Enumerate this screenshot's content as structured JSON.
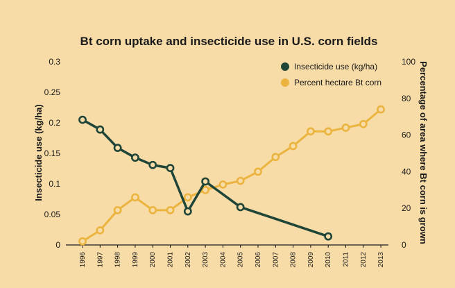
{
  "chart_data": {
    "type": "line",
    "title": "Bt corn uptake and insecticide use in U.S. corn fields",
    "x": [
      "1996",
      "1997",
      "1998",
      "1999",
      "2000",
      "2001",
      "2002",
      "2003",
      "2004",
      "2005",
      "2006",
      "2007",
      "2008",
      "2009",
      "2010",
      "2011",
      "2012",
      "2013"
    ],
    "ylabel_left": "Insecticide use (kg/ha)",
    "ylabel_right": "Percentage of area where Bt corn is grown",
    "ylim_left": [
      0,
      0.3
    ],
    "ylim_right": [
      0,
      100
    ],
    "yticks_left": [
      "0",
      "0.05",
      "0.1",
      "0.15",
      "0.2",
      "0.25",
      "0.3"
    ],
    "yticks_right": [
      "0",
      "20",
      "40",
      "60",
      "80",
      "100"
    ],
    "legend_position": "top-right",
    "grid": false,
    "series": [
      {
        "name": "Insecticide use (kg/ha)",
        "axis": "left",
        "color": "#1f4538",
        "points": [
          {
            "x": "1996",
            "y": 0.205
          },
          {
            "x": "1997",
            "y": 0.189
          },
          {
            "x": "1998",
            "y": 0.159
          },
          {
            "x": "1999",
            "y": 0.143
          },
          {
            "x": "2000",
            "y": 0.131
          },
          {
            "x": "2001",
            "y": 0.126
          },
          {
            "x": "2002",
            "y": 0.055
          },
          {
            "x": "2003",
            "y": 0.104
          },
          {
            "x": "2005",
            "y": 0.062
          },
          {
            "x": "2010",
            "y": 0.014
          }
        ]
      },
      {
        "name": "Percent hectare Bt corn",
        "axis": "right",
        "color": "#eab43f",
        "points": [
          {
            "x": "1996",
            "y": 2
          },
          {
            "x": "1997",
            "y": 8
          },
          {
            "x": "1998",
            "y": 19
          },
          {
            "x": "1999",
            "y": 26
          },
          {
            "x": "2000",
            "y": 19
          },
          {
            "x": "2001",
            "y": 19
          },
          {
            "x": "2002",
            "y": 26
          },
          {
            "x": "2003",
            "y": 30
          },
          {
            "x": "2004",
            "y": 33
          },
          {
            "x": "2005",
            "y": 35
          },
          {
            "x": "2006",
            "y": 40
          },
          {
            "x": "2007",
            "y": 48
          },
          {
            "x": "2008",
            "y": 54
          },
          {
            "x": "2009",
            "y": 62
          },
          {
            "x": "2010",
            "y": 62
          },
          {
            "x": "2011",
            "y": 64
          },
          {
            "x": "2012",
            "y": 66
          },
          {
            "x": "2013",
            "y": 74
          }
        ]
      }
    ]
  }
}
